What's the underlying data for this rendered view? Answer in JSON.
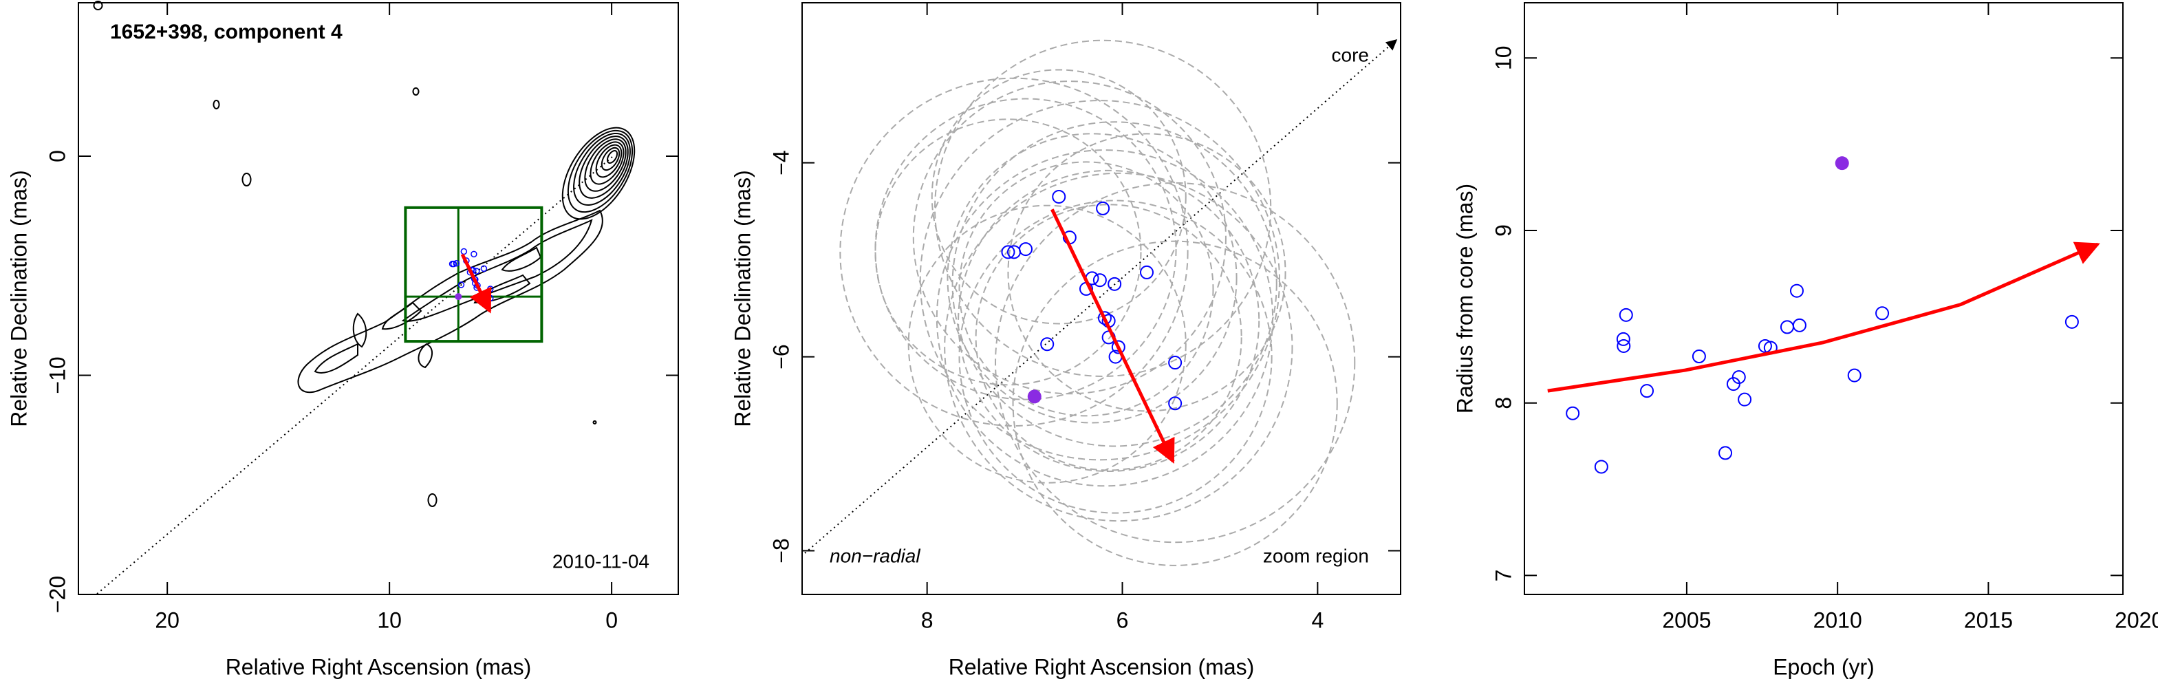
{
  "chart_data": [
    {
      "type": "contour",
      "title": "1652+398, component 4",
      "annotation": "2010-11-04",
      "xlabel": "Relative Right Ascension (mas)",
      "ylabel": "Relative Declination (mas)",
      "xlim": [
        24,
        -3
      ],
      "ylim": [
        -20,
        7
      ],
      "xticks": [
        20,
        10,
        0
      ],
      "yticks": [
        {
          "value": -20,
          "label": "−20"
        },
        {
          "value": -10,
          "label": "−10"
        },
        0
      ],
      "contour_color": "#000000",
      "box_color": "#006400"
    },
    {
      "type": "scatter",
      "annotations": [
        "core",
        "non−radial",
        "zoom region"
      ],
      "xlabel": "Relative Right Ascension (mas)",
      "ylabel": "Relative Declination (mas)",
      "xlim": [
        9.28,
        3.15
      ],
      "ylim": [
        -8.45,
        -2.35
      ],
      "xticks": [
        8,
        6,
        4
      ],
      "yticks": [
        {
          "value": -8,
          "label": "−8"
        },
        {
          "value": -6,
          "label": "−6"
        },
        {
          "value": -4,
          "label": "−4"
        }
      ],
      "points": {
        "color": "#0000ff",
        "x": [
          6.65,
          6.2,
          6.99,
          7.17,
          7.11,
          6.54,
          5.75,
          6.23,
          6.08,
          6.31,
          6.37,
          6.18,
          6.14,
          6.14,
          6.04,
          6.07,
          6.77,
          5.46,
          5.46
        ],
        "y": [
          -4.35,
          -4.47,
          -4.89,
          -4.92,
          -4.92,
          -4.77,
          -5.13,
          -5.21,
          -5.25,
          -5.19,
          -5.3,
          -5.6,
          -5.63,
          -5.8,
          -5.9,
          -6.0,
          -5.87,
          -6.06,
          -6.48
        ]
      },
      "highlight": {
        "color": "#8a2be2",
        "x": 6.9,
        "y": -6.41
      },
      "fit": {
        "color": "#ff0000",
        "x": [
          6.72,
          5.48
        ],
        "y": [
          -4.48,
          -7.08
        ]
      },
      "circle_color": "#aaaaaa"
    },
    {
      "type": "scatter",
      "xlabel": "Epoch (yr)",
      "ylabel": "Radius from core (mas)",
      "xlim": [
        1999.62,
        2019.46
      ],
      "ylim": [
        6.89,
        10.32
      ],
      "xticks": [
        2005,
        2010,
        2015,
        2020
      ],
      "yticks": [
        7,
        8,
        9,
        10
      ],
      "points": {
        "color": "#0000ff",
        "x": [
          2001.22,
          2002.17,
          2002.99,
          2002.9,
          2002.91,
          2003.68,
          2005.41,
          2006.28,
          2006.55,
          2006.73,
          2006.92,
          2007.6,
          2007.78,
          2008.33,
          2008.65,
          2008.74,
          2010.56,
          2011.48,
          2017.77
        ],
        "y": [
          7.94,
          7.63,
          8.51,
          8.37,
          8.33,
          8.07,
          8.27,
          7.71,
          8.11,
          8.15,
          8.02,
          8.33,
          8.32,
          8.44,
          8.65,
          8.45,
          8.16,
          8.52,
          8.47
        ]
      },
      "highlight": {
        "color": "#8a2be2",
        "x": 2010.15,
        "y": 9.39
      },
      "fit": {
        "color": "#ff0000",
        "x": [
          2000.39,
          2004.95,
          2009.51,
          2014.07,
          2018.63
        ],
        "y": [
          8.07,
          8.19,
          8.35,
          8.57,
          8.92
        ]
      }
    }
  ]
}
